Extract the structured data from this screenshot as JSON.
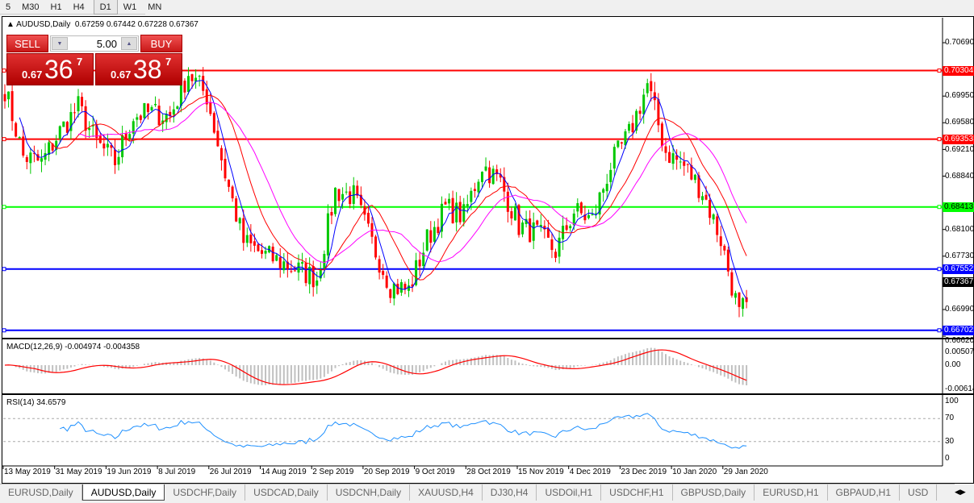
{
  "toolbar": {
    "timeframes": [
      "5",
      "M30",
      "H1",
      "H4",
      "D1",
      "W1",
      "MN"
    ],
    "active": "D1"
  },
  "chart": {
    "title": "AUDUSD,Daily",
    "ohlc": "0.67259 0.67442 0.67228 0.67367",
    "trade_panel": {
      "sell_label": "SELL",
      "buy_label": "BUY",
      "lot": "5.00",
      "sell_small": "0.67",
      "sell_big": "36",
      "sell_sup": "7",
      "buy_small": "0.67",
      "buy_big": "38",
      "buy_sup": "7"
    },
    "price_axis": [
      "0.70690",
      "0.69950",
      "0.69580",
      "0.69210",
      "0.68840",
      "0.68100",
      "0.67730",
      "0.66990",
      "0.66620"
    ],
    "current_price": "0.67367",
    "levels": [
      {
        "price": "0.70304",
        "color": "#ff0000"
      },
      {
        "price": "0.69353",
        "color": "#ff0000"
      },
      {
        "price": "0.68413",
        "color": "#00ff00"
      },
      {
        "price": "0.67552",
        "color": "#0000ff"
      },
      {
        "price": "0.66702",
        "color": "#0000ff"
      }
    ],
    "dates": [
      "13 May 2019",
      "31 May 2019",
      "19 Jun 2019",
      "8 Jul 2019",
      "26 Jul 2019",
      "14 Aug 2019",
      "2 Sep 2019",
      "20 Sep 2019",
      "9 Oct 2019",
      "28 Oct 2019",
      "15 Nov 2019",
      "4 Dec 2019",
      "23 Dec 2019",
      "10 Jan 2020",
      "29 Jan 2020"
    ],
    "colors": {
      "bull": "#00c800",
      "bear": "#ff0000",
      "ma_fast": "#0000ff",
      "ma_mid": "#ff0000",
      "ma_slow": "#ff00ff"
    }
  },
  "macd": {
    "label": "MACD(12,26,9) -0.004974 -0.004358",
    "axis": [
      "0.005076",
      "0.00",
      "-0.006146"
    ],
    "colors": {
      "hist": "#c0c0c0",
      "signal": "#ff0000"
    }
  },
  "rsi": {
    "label": "RSI(14) 34.6579",
    "axis": [
      "100",
      "70",
      "30",
      "0"
    ],
    "color": "#1e90ff"
  },
  "chart_data": {
    "type": "candlestick",
    "note_closes_every_5_bars": [
      0.70053,
      0.69114,
      0.69024,
      0.6946,
      0.69801,
      0.69304,
      0.69036,
      0.69673,
      0.69717,
      0.69673,
      0.70276,
      0.69952,
      0.68868,
      0.67929,
      0.67761,
      0.6765,
      0.67538,
      0.67426,
      0.68633,
      0.68566,
      0.67907,
      0.67325,
      0.67258,
      0.67963,
      0.68399,
      0.68287,
      0.69002,
      0.68745,
      0.68153,
      0.68041,
      0.67795,
      0.68354,
      0.68231,
      0.68991,
      0.69416,
      0.70109,
      0.69181,
      0.6898,
      0.68633,
      0.67963,
      0.66912,
      0.67367
    ]
  },
  "tabs": {
    "items": [
      "EURUSD,Daily",
      "AUDUSD,Daily",
      "USDCHF,Daily",
      "USDCAD,Daily",
      "USDCNH,Daily",
      "XAUUSD,H4",
      "DJ30,H4",
      "USDOil,H1",
      "USDCHF,H1",
      "GBPUSD,Daily",
      "EURUSD,H1",
      "GBPAUD,H1",
      "USD"
    ],
    "active": "AUDUSD,Daily"
  }
}
